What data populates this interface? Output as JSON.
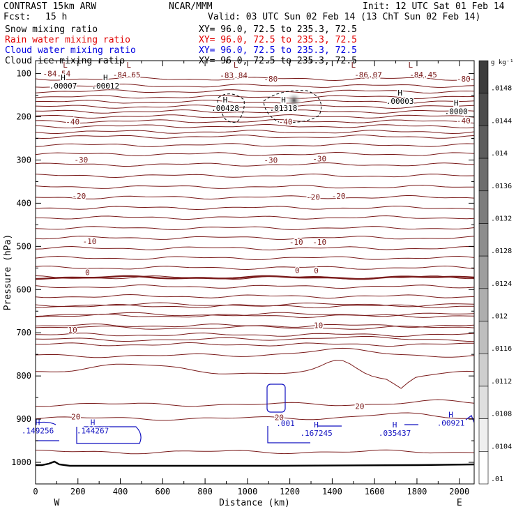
{
  "header": {
    "model": "CONTRAST 15km ARW",
    "org": "NCAR/MMM",
    "init": "Init: 12 UTC Sat 01 Feb 14",
    "fcst_label": "Fcst:",
    "fcst_value": "15 h",
    "valid": "Valid: 03 UTC Sun 02 Feb 14 (13 ChT Sun 02 Feb 14)",
    "fields": [
      {
        "name": "Snow mixing ratio",
        "xy": "XY=  96.0, 72.5 to 235.3, 72.5",
        "color": "#000000"
      },
      {
        "name": "Rain water mixing ratio",
        "xy": "XY=  96.0, 72.5 to 235.3, 72.5",
        "color": "#e00000"
      },
      {
        "name": "Cloud water mixing ratio",
        "xy": "XY=  96.0, 72.5 to 235.3, 72.5",
        "color": "#0000e0"
      },
      {
        "name": "Cloud ice mixing ratio",
        "xy": "XY=  96.0, 72.5 to 235.3, 72.5",
        "color": "#000000"
      }
    ]
  },
  "colors": {
    "temperature": "#7a1a1a",
    "cloud_water": "#1010c0",
    "snow": "#000000",
    "terrain": "#000000"
  },
  "chart_data": {
    "type": "contour cross-section",
    "xlabel": "Distance (km)",
    "ylabel": "Pressure (hPa)",
    "xlim": [
      0,
      2070
    ],
    "ylim": [
      1050,
      70
    ],
    "x_ticks": [
      0,
      200,
      400,
      600,
      800,
      1000,
      1200,
      1400,
      1600,
      1800,
      2000
    ],
    "y_ticks": [
      100,
      200,
      300,
      400,
      500,
      600,
      700,
      800,
      900,
      1000
    ],
    "west_label": "W",
    "east_label": "E",
    "temperature_labels": [
      {
        "text": "-84.54",
        "x": 100,
        "p": 100
      },
      {
        "text": "-84.65",
        "x": 430,
        "p": 102
      },
      {
        "text": "-83.84",
        "x": 935,
        "p": 104
      },
      {
        "text": "-80",
        "x": 1110,
        "p": 112
      },
      {
        "text": "-86.07",
        "x": 1570,
        "p": 102
      },
      {
        "text": "-84.45",
        "x": 1830,
        "p": 102
      },
      {
        "text": "-80",
        "x": 2020,
        "p": 112
      },
      {
        "text": "-40",
        "x": 175,
        "p": 211
      },
      {
        "text": "-40",
        "x": 1180,
        "p": 211
      },
      {
        "text": "-40",
        "x": 2020,
        "p": 209
      },
      {
        "text": "-30",
        "x": 215,
        "p": 299
      },
      {
        "text": "-30",
        "x": 1110,
        "p": 300
      },
      {
        "text": "-30",
        "x": 1340,
        "p": 297
      },
      {
        "text": "-20",
        "x": 205,
        "p": 383
      },
      {
        "text": "-20",
        "x": 1310,
        "p": 386
      },
      {
        "text": "-20",
        "x": 1430,
        "p": 383
      },
      {
        "text": "-10",
        "x": 255,
        "p": 488
      },
      {
        "text": "-10",
        "x": 1230,
        "p": 490
      },
      {
        "text": "-10",
        "x": 1340,
        "p": 490
      },
      {
        "text": "0",
        "x": 245,
        "p": 560
      },
      {
        "text": "0",
        "x": 1235,
        "p": 555
      },
      {
        "text": "0",
        "x": 1325,
        "p": 556
      },
      {
        "text": "10",
        "x": 175,
        "p": 693
      },
      {
        "text": "10",
        "x": 1335,
        "p": 683
      },
      {
        "text": "20",
        "x": 1530,
        "p": 870
      },
      {
        "text": "20",
        "x": 1150,
        "p": 896
      },
      {
        "text": "20",
        "x": 190,
        "p": 894
      }
    ],
    "maxima": [
      {
        "label": "L",
        "x": 140,
        "p": 86
      },
      {
        "label": "L",
        "x": 440,
        "p": 86
      },
      {
        "label": "L",
        "x": 945,
        "p": 86
      },
      {
        "label": "L",
        "x": 1500,
        "p": 86
      },
      {
        "label": "L",
        "x": 1770,
        "p": 86
      },
      {
        "label": "H",
        "value": ".00007",
        "x": 130,
        "p": 115
      },
      {
        "label": "H",
        "value": ".00012",
        "x": 330,
        "p": 115
      },
      {
        "label": "H",
        "value": ".00428",
        "x": 895,
        "p": 167
      },
      {
        "label": "H",
        "value": ".01318",
        "x": 1170,
        "p": 167
      },
      {
        "label": "H",
        "value": ".00003",
        "x": 1720,
        "p": 151
      },
      {
        "label": "H",
        "value": ".0000",
        "x": 1985,
        "p": 174
      }
    ],
    "cloud_water_labels": [
      {
        "label": "H",
        "value": ".149256",
        "x": 10,
        "p": 930
      },
      {
        "label": "H",
        "value": ".144267",
        "x": 270,
        "p": 930
      },
      {
        "label": "",
        "value": ".001",
        "x": 1180,
        "p": 913
      },
      {
        "label": "H",
        "value": ".167245",
        "x": 1325,
        "p": 935
      },
      {
        "label": "H",
        "value": ".035437",
        "x": 1695,
        "p": 935
      },
      {
        "label": "H",
        "value": ".00921",
        "x": 1960,
        "p": 912
      }
    ],
    "colorbar": {
      "unit": "g kg⁻¹",
      "ticks": [
        ".0148",
        ".0144",
        ".014",
        ".0136",
        ".0132",
        ".0128",
        ".0124",
        ".012",
        ".0116",
        ".0112",
        ".0108",
        ".0104",
        ".01"
      ]
    }
  }
}
